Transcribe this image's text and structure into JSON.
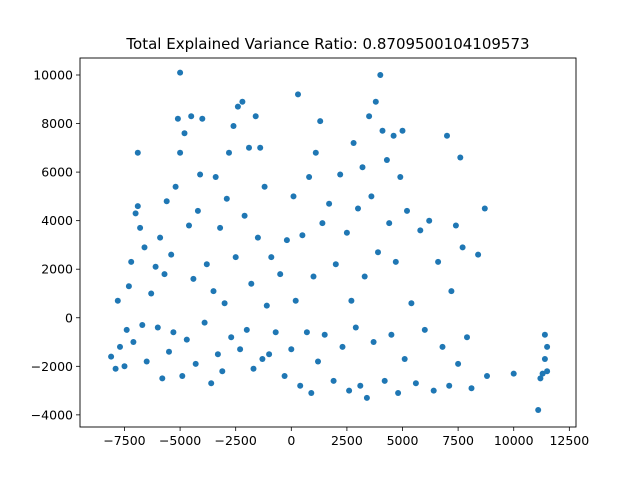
{
  "chart_data": {
    "type": "scatter",
    "title": "Total Explained Variance Ratio: 0.8709500104109573",
    "xlabel": "",
    "ylabel": "",
    "xlim": [
      -9500,
      12800
    ],
    "ylim": [
      -4500,
      10700
    ],
    "grid": false,
    "marker_color": "#1f77b4",
    "x_ticks": [
      {
        "value": -7500,
        "label": "−7500"
      },
      {
        "value": -5000,
        "label": "−5000"
      },
      {
        "value": -2500,
        "label": "−2500"
      },
      {
        "value": 0,
        "label": "0"
      },
      {
        "value": 2500,
        "label": "2500"
      },
      {
        "value": 5000,
        "label": "5000"
      },
      {
        "value": 7500,
        "label": "7500"
      },
      {
        "value": 10000,
        "label": "10000"
      },
      {
        "value": 12500,
        "label": "12500"
      }
    ],
    "y_ticks": [
      {
        "value": -4000,
        "label": "−4000"
      },
      {
        "value": -2000,
        "label": "−2000"
      },
      {
        "value": 0,
        "label": "0"
      },
      {
        "value": 2000,
        "label": "2000"
      },
      {
        "value": 4000,
        "label": "4000"
      },
      {
        "value": 6000,
        "label": "6000"
      },
      {
        "value": 8000,
        "label": "8000"
      },
      {
        "value": 10000,
        "label": "10000"
      }
    ],
    "points": [
      [
        -8100,
        -1600
      ],
      [
        -7900,
        -2100
      ],
      [
        -7800,
        700
      ],
      [
        -7700,
        -1200
      ],
      [
        -7500,
        -2000
      ],
      [
        -7400,
        -500
      ],
      [
        -7300,
        1300
      ],
      [
        -7200,
        2300
      ],
      [
        -7100,
        -1000
      ],
      [
        -7000,
        4300
      ],
      [
        -6900,
        6800
      ],
      [
        -6900,
        4600
      ],
      [
        -6800,
        3700
      ],
      [
        -6700,
        -300
      ],
      [
        -6600,
        2900
      ],
      [
        -6500,
        -1800
      ],
      [
        -6300,
        1000
      ],
      [
        -6100,
        2100
      ],
      [
        -6000,
        -400
      ],
      [
        -5900,
        3300
      ],
      [
        -5800,
        -2500
      ],
      [
        -5700,
        1800
      ],
      [
        -5600,
        4800
      ],
      [
        -5500,
        -1400
      ],
      [
        -5400,
        2600
      ],
      [
        -5300,
        -600
      ],
      [
        -5200,
        5400
      ],
      [
        -5100,
        8200
      ],
      [
        -5000,
        10100
      ],
      [
        -5000,
        6800
      ],
      [
        -4900,
        -2400
      ],
      [
        -4800,
        7600
      ],
      [
        -4700,
        -900
      ],
      [
        -4600,
        3800
      ],
      [
        -4500,
        8300
      ],
      [
        -4400,
        1600
      ],
      [
        -4300,
        -1900
      ],
      [
        -4200,
        4400
      ],
      [
        -4100,
        5900
      ],
      [
        -4000,
        8200
      ],
      [
        -3900,
        -200
      ],
      [
        -3800,
        2200
      ],
      [
        -3600,
        -2700
      ],
      [
        -3500,
        1100
      ],
      [
        -3400,
        5800
      ],
      [
        -3300,
        -1500
      ],
      [
        -3200,
        3700
      ],
      [
        -3100,
        -2200
      ],
      [
        -3000,
        600
      ],
      [
        -2900,
        4900
      ],
      [
        -2800,
        6800
      ],
      [
        -2700,
        -800
      ],
      [
        -2600,
        7900
      ],
      [
        -2500,
        2500
      ],
      [
        -2400,
        8700
      ],
      [
        -2300,
        -1300
      ],
      [
        -2200,
        8900
      ],
      [
        -2100,
        4200
      ],
      [
        -2000,
        -500
      ],
      [
        -1900,
        7000
      ],
      [
        -1800,
        1400
      ],
      [
        -1700,
        -2100
      ],
      [
        -1600,
        8300
      ],
      [
        -1500,
        3300
      ],
      [
        -1400,
        7000
      ],
      [
        -1300,
        -1700
      ],
      [
        -1200,
        5400
      ],
      [
        -1100,
        500
      ],
      [
        -1000,
        -1500
      ],
      [
        -900,
        2500
      ],
      [
        -700,
        -600
      ],
      [
        -500,
        1800
      ],
      [
        -300,
        -2400
      ],
      [
        -200,
        3200
      ],
      [
        0,
        -1300
      ],
      [
        100,
        5000
      ],
      [
        200,
        700
      ],
      [
        300,
        9200
      ],
      [
        400,
        -2800
      ],
      [
        500,
        3400
      ],
      [
        700,
        -600
      ],
      [
        800,
        5800
      ],
      [
        900,
        -3100
      ],
      [
        1000,
        1700
      ],
      [
        1100,
        6800
      ],
      [
        1200,
        -1800
      ],
      [
        1300,
        8100
      ],
      [
        1400,
        3900
      ],
      [
        1500,
        -700
      ],
      [
        1700,
        4700
      ],
      [
        1900,
        -2600
      ],
      [
        2000,
        2200
      ],
      [
        2200,
        5900
      ],
      [
        2300,
        -1200
      ],
      [
        2500,
        3500
      ],
      [
        2600,
        -3000
      ],
      [
        2700,
        700
      ],
      [
        2800,
        7200
      ],
      [
        2900,
        -400
      ],
      [
        3000,
        4500
      ],
      [
        3100,
        -2800
      ],
      [
        3200,
        6200
      ],
      [
        3300,
        1700
      ],
      [
        3400,
        -3300
      ],
      [
        3500,
        8300
      ],
      [
        3600,
        5000
      ],
      [
        3700,
        -1000
      ],
      [
        3800,
        8900
      ],
      [
        3900,
        2700
      ],
      [
        4000,
        10000
      ],
      [
        4100,
        7700
      ],
      [
        4200,
        -2600
      ],
      [
        4300,
        6500
      ],
      [
        4400,
        3900
      ],
      [
        4500,
        -700
      ],
      [
        4600,
        7500
      ],
      [
        4700,
        2300
      ],
      [
        4800,
        -3100
      ],
      [
        4900,
        5800
      ],
      [
        5000,
        7700
      ],
      [
        5100,
        -1700
      ],
      [
        5200,
        4400
      ],
      [
        5400,
        600
      ],
      [
        5600,
        -2700
      ],
      [
        5800,
        3600
      ],
      [
        6000,
        -500
      ],
      [
        6200,
        4000
      ],
      [
        6400,
        -3000
      ],
      [
        6600,
        2300
      ],
      [
        6800,
        -1200
      ],
      [
        7000,
        7500
      ],
      [
        7100,
        -2800
      ],
      [
        7200,
        1100
      ],
      [
        7400,
        3800
      ],
      [
        7500,
        -1900
      ],
      [
        7600,
        6600
      ],
      [
        7700,
        2900
      ],
      [
        7900,
        -800
      ],
      [
        8100,
        -2900
      ],
      [
        8400,
        2600
      ],
      [
        8700,
        4500
      ],
      [
        8800,
        -2400
      ],
      [
        10000,
        -2300
      ],
      [
        11100,
        -3800
      ],
      [
        11200,
        -2500
      ],
      [
        11300,
        -2300
      ],
      [
        11400,
        -700
      ],
      [
        11500,
        -1200
      ],
      [
        11500,
        -2200
      ],
      [
        11400,
        -1700
      ]
    ]
  }
}
